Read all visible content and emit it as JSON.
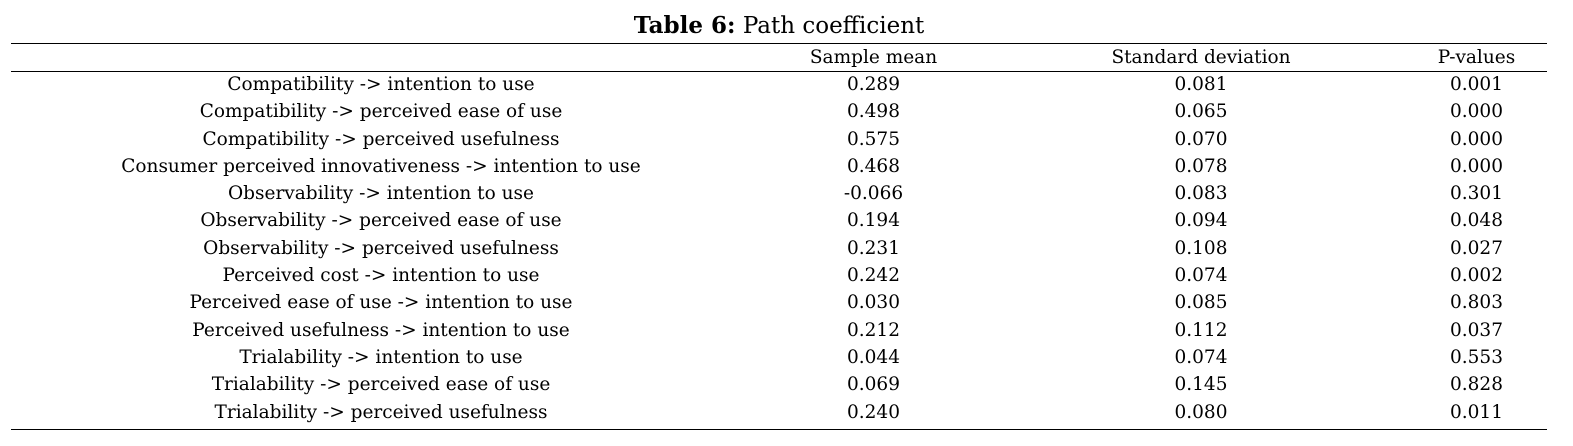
{
  "caption": {
    "label": "Table 6:",
    "title": "Path coefficient"
  },
  "table": {
    "headers": [
      "",
      "Sample mean",
      "Standard deviation",
      "P-values"
    ],
    "rows": [
      [
        "Compatibility -> intention to use",
        "0.289",
        "0.081",
        "0.001"
      ],
      [
        "Compatibility -> perceived ease of use",
        "0.498",
        "0.065",
        "0.000"
      ],
      [
        "Compatibility -> perceived usefulness",
        "0.575",
        "0.070",
        "0.000"
      ],
      [
        "Consumer perceived innovativeness -> intention to use",
        "0.468",
        "0.078",
        "0.000"
      ],
      [
        "Observability -> intention to use",
        "-0.066",
        "0.083",
        "0.301"
      ],
      [
        "Observability -> perceived ease of use",
        "0.194",
        "0.094",
        "0.048"
      ],
      [
        "Observability -> perceived usefulness",
        "0.231",
        "0.108",
        "0.027"
      ],
      [
        "Perceived cost -> intention to use",
        "0.242",
        "0.074",
        "0.002"
      ],
      [
        "Perceived ease of use -> intention to use",
        "0.030",
        "0.085",
        "0.803"
      ],
      [
        "Perceived usefulness -> intention to use",
        "0.212",
        "0.112",
        "0.037"
      ],
      [
        "Trialability -> intention to use",
        "0.044",
        "0.074",
        "0.553"
      ],
      [
        "Trialability -> perceived ease of use",
        "0.069",
        "0.145",
        "0.828"
      ],
      [
        "Trialability -> perceived usefulness",
        "0.240",
        "0.080",
        "0.011"
      ]
    ]
  }
}
